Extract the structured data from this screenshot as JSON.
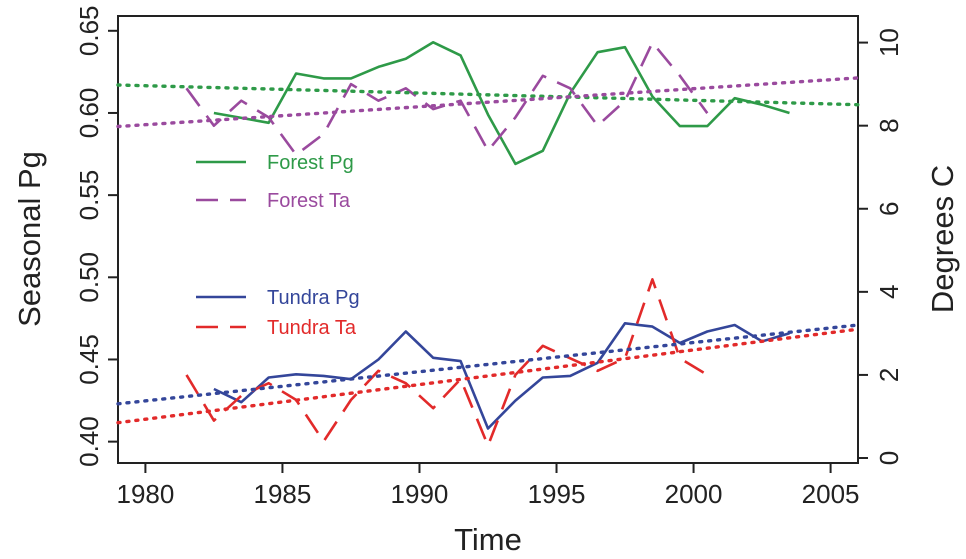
{
  "chart_data": {
    "type": "line",
    "title": "",
    "xlabel": "Time",
    "ylabel": "Seasonal Pg",
    "y2label": "Degrees C",
    "xlim": [
      1979,
      2006
    ],
    "ylim": [
      0.387,
      0.659
    ],
    "y2lim": [
      -0.12,
      10.64
    ],
    "x_ticks": [
      1980,
      1985,
      1990,
      1995,
      2000,
      2005
    ],
    "y_ticks": [
      0.4,
      0.45,
      0.5,
      0.55,
      0.6,
      0.65
    ],
    "y_tick_labels": [
      "0.40",
      "0.45",
      "0.50",
      "0.55",
      "0.60",
      "0.65"
    ],
    "y2_ticks": [
      0,
      2,
      4,
      6,
      8,
      10
    ],
    "y2_tick_labels": [
      "0",
      "2",
      "4",
      "6",
      "8",
      "10"
    ],
    "grid": false,
    "series": [
      {
        "name": "Forest Pg",
        "axis": "left",
        "color": "#2e9a48",
        "style": "solid",
        "x": [
          1982.5,
          1984.5,
          1985.5,
          1986.5,
          1987.5,
          1988.5,
          1989.5,
          1990.5,
          1991.5,
          1992.5,
          1993.5,
          1994.5,
          1995.5,
          1996.5,
          1997.5,
          1998.5,
          1999.5,
          2000.5,
          2001.5,
          2002.5,
          2003.5
        ],
        "values": [
          0.6,
          0.594,
          0.624,
          0.621,
          0.621,
          0.628,
          0.633,
          0.643,
          0.635,
          0.599,
          0.569,
          0.577,
          0.612,
          0.637,
          0.64,
          0.61,
          0.592,
          0.592,
          0.609,
          0.605,
          0.6
        ]
      },
      {
        "name": "Forest Ta",
        "axis": "right",
        "color": "#9a4a9e",
        "style": "dashed",
        "x": [
          1981.5,
          1982.5,
          1983.5,
          1984.5,
          1985.5,
          1986.5,
          1987.5,
          1988.5,
          1989.5,
          1990.5,
          1991.5,
          1992.5,
          1993.5,
          1994.5,
          1995.5,
          1996.5,
          1997.5,
          1998.5,
          1999.5,
          2000.5
        ],
        "values": [
          8.9,
          8.0,
          8.6,
          8.2,
          7.3,
          7.8,
          9.0,
          8.6,
          8.9,
          8.4,
          8.6,
          7.4,
          8.2,
          9.2,
          8.9,
          8.0,
          8.6,
          10.0,
          9.2,
          8.3
        ]
      },
      {
        "name": "Forest Pg trend",
        "axis": "left",
        "color": "#2e9a48",
        "style": "dotted",
        "x": [
          1979,
          2006
        ],
        "values": [
          0.617,
          0.605
        ]
      },
      {
        "name": "Forest Ta trend",
        "axis": "right",
        "color": "#9a4a9e",
        "style": "dotted",
        "x": [
          1979,
          2006
        ],
        "values": [
          7.98,
          9.15
        ]
      },
      {
        "name": "Tundra Pg",
        "axis": "left",
        "color": "#34469a",
        "style": "solid",
        "x": [
          1982.5,
          1983.5,
          1984.5,
          1985.5,
          1986.5,
          1987.5,
          1988.5,
          1989.5,
          1990.5,
          1991.5,
          1992.5,
          1993.5,
          1994.5,
          1995.5,
          1996.5,
          1997.5,
          1998.5,
          1999.5,
          2000.5,
          2001.5,
          2002.5,
          2003.5
        ],
        "values": [
          0.432,
          0.424,
          0.439,
          0.441,
          0.44,
          0.438,
          0.45,
          0.467,
          0.451,
          0.449,
          0.408,
          0.425,
          0.439,
          0.44,
          0.448,
          0.472,
          0.47,
          0.46,
          0.467,
          0.471,
          0.461,
          0.466
        ]
      },
      {
        "name": "Tundra Ta",
        "axis": "right",
        "color": "#e22a2a",
        "style": "dashed",
        "x": [
          1981.5,
          1982.5,
          1983.5,
          1984.5,
          1985.5,
          1986.5,
          1987.5,
          1988.5,
          1989.5,
          1990.5,
          1991.5,
          1992.5,
          1993.5,
          1994.5,
          1995.5,
          1996.5,
          1997.5,
          1998.5,
          1999.5,
          2000.5
        ],
        "values": [
          2.0,
          0.9,
          1.5,
          1.8,
          1.4,
          0.4,
          1.4,
          2.1,
          1.8,
          1.2,
          1.9,
          0.3,
          2.0,
          2.7,
          2.4,
          2.1,
          2.4,
          4.3,
          2.4,
          2.0
        ]
      },
      {
        "name": "Tundra Pg trend",
        "axis": "left",
        "color": "#34469a",
        "style": "dotted",
        "x": [
          1979,
          2006
        ],
        "values": [
          0.423,
          0.471
        ]
      },
      {
        "name": "Tundra Ta trend",
        "axis": "right",
        "color": "#e22a2a",
        "style": "dotted",
        "x": [
          1979,
          2006
        ],
        "values": [
          0.85,
          3.1
        ]
      }
    ],
    "legend": [
      {
        "label": "Forest Pg",
        "color": "#2e9a48",
        "style": "solid"
      },
      {
        "label": "Forest Ta",
        "color": "#9a4a9e",
        "style": "dashed"
      },
      {
        "label": "Tundra Pg",
        "color": "#34469a",
        "style": "solid"
      },
      {
        "label": "Tundra Ta",
        "color": "#e22a2a",
        "style": "dashed"
      }
    ]
  }
}
